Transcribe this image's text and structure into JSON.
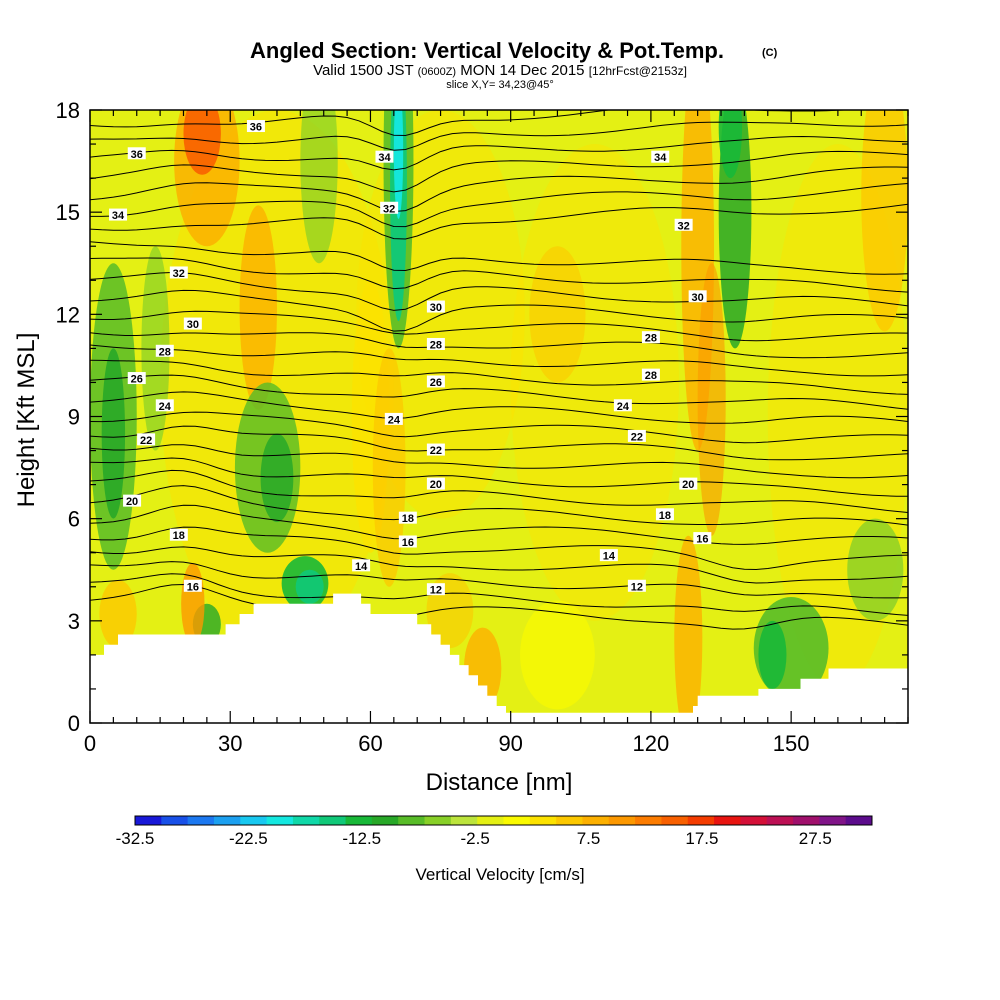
{
  "header": {
    "title": "Angled Section: Vertical Velocity & Pot.Temp.",
    "copyright": "(C)",
    "valid_prefix": "Valid 1500 JST",
    "valid_utc": "(0600Z)",
    "valid_date": "MON 14 Dec 2015",
    "forecast": "[12hrFcst@2153z]",
    "slice": "slice X,Y= 34,23@45°"
  },
  "chart_data": {
    "type": "heatmap",
    "xlabel": "Distance [nm]",
    "ylabel": "Height [Kft MSL]",
    "xlim": [
      0,
      175
    ],
    "ylim": [
      0,
      18
    ],
    "x_ticks": [
      "0",
      "30",
      "60",
      "90",
      "120",
      "150"
    ],
    "y_ticks": [
      "0",
      "3",
      "6",
      "9",
      "12",
      "15",
      "18"
    ],
    "grid": false,
    "colorbar": {
      "label": "Vertical Velocity [cm/s]",
      "min": -32.5,
      "max": 32.5,
      "step": 2.5,
      "tick_labels": [
        "-32.5",
        "-22.5",
        "-12.5",
        "-2.5",
        "7.5",
        "17.5",
        "27.5"
      ],
      "colors": [
        "#1818d8",
        "#1850e8",
        "#1c78f0",
        "#1ca0f0",
        "#18c8f0",
        "#14e8e0",
        "#10d8a8",
        "#10c878",
        "#18b838",
        "#28a828",
        "#58bc28",
        "#88d028",
        "#bce43c",
        "#e4f014",
        "#fafa00",
        "#fce200",
        "#fcc800",
        "#fcb000",
        "#fc9800",
        "#fc7c00",
        "#f86000",
        "#f43c00",
        "#e81410",
        "#d41038",
        "#bc1054",
        "#a0106c",
        "#801488",
        "#5c0c8c"
      ]
    },
    "contour_labels": [
      {
        "x": 35.5,
        "y": 17.5,
        "text": "36"
      },
      {
        "x": 10,
        "y": 16.7,
        "text": "36"
      },
      {
        "x": 63,
        "y": 16.6,
        "text": "34"
      },
      {
        "x": 122,
        "y": 16.6,
        "text": "34"
      },
      {
        "x": 6,
        "y": 14.9,
        "text": "34"
      },
      {
        "x": 64,
        "y": 15.1,
        "text": "32"
      },
      {
        "x": 127,
        "y": 14.6,
        "text": "32"
      },
      {
        "x": 19,
        "y": 13.2,
        "text": "32"
      },
      {
        "x": 74,
        "y": 12.2,
        "text": "30"
      },
      {
        "x": 130,
        "y": 12.5,
        "text": "30"
      },
      {
        "x": 22,
        "y": 11.7,
        "text": "30"
      },
      {
        "x": 74,
        "y": 11.1,
        "text": "28"
      },
      {
        "x": 120,
        "y": 11.3,
        "text": "28"
      },
      {
        "x": 16,
        "y": 10.9,
        "text": "28"
      },
      {
        "x": 10,
        "y": 10.1,
        "text": "26"
      },
      {
        "x": 74,
        "y": 10.0,
        "text": "26"
      },
      {
        "x": 120,
        "y": 10.2,
        "text": "28"
      },
      {
        "x": 16,
        "y": 9.3,
        "text": "24"
      },
      {
        "x": 65,
        "y": 8.9,
        "text": "24"
      },
      {
        "x": 114,
        "y": 9.3,
        "text": "24"
      },
      {
        "x": 12,
        "y": 8.3,
        "text": "22"
      },
      {
        "x": 74,
        "y": 8.0,
        "text": "22"
      },
      {
        "x": 117,
        "y": 8.4,
        "text": "22"
      },
      {
        "x": 74,
        "y": 7.0,
        "text": "20"
      },
      {
        "x": 128,
        "y": 7.0,
        "text": "20"
      },
      {
        "x": 9,
        "y": 6.5,
        "text": "20"
      },
      {
        "x": 68,
        "y": 6.0,
        "text": "18"
      },
      {
        "x": 123,
        "y": 6.1,
        "text": "18"
      },
      {
        "x": 19,
        "y": 5.5,
        "text": "18"
      },
      {
        "x": 68,
        "y": 5.3,
        "text": "16"
      },
      {
        "x": 131,
        "y": 5.4,
        "text": "16"
      },
      {
        "x": 22,
        "y": 4.0,
        "text": "16"
      },
      {
        "x": 58,
        "y": 4.6,
        "text": "14"
      },
      {
        "x": 111,
        "y": 4.9,
        "text": "14"
      },
      {
        "x": 74,
        "y": 3.9,
        "text": "12"
      },
      {
        "x": 117,
        "y": 4.0,
        "text": "12"
      }
    ]
  }
}
